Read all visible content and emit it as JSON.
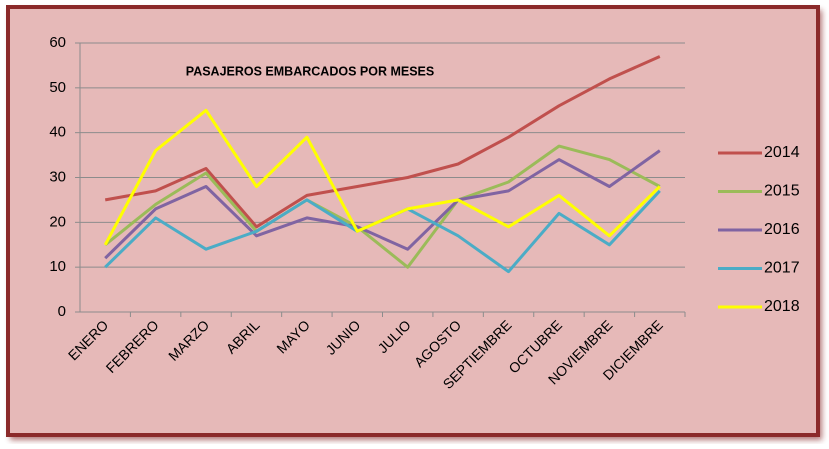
{
  "chart_data": {
    "type": "line",
    "title": "PASAJEROS EMBARCADOS POR MESES",
    "categories": [
      "ENERO",
      "FEBRERO",
      "MARZO",
      "ABRIL",
      "MAYO",
      "JUNIO",
      "JULIO",
      "AGOSTO",
      "SEPTIEMBRE",
      "OCTUBRE",
      "NOVIEMBRE",
      "DICIEMBRE"
    ],
    "series": [
      {
        "name": "2014",
        "color": "#c0504d",
        "values": [
          25,
          27,
          32,
          19,
          26,
          28,
          30,
          33,
          39,
          46,
          52,
          57
        ]
      },
      {
        "name": "2015",
        "color": "#9bbb59",
        "values": [
          15,
          24,
          31,
          18,
          25,
          19,
          10,
          25,
          29,
          37,
          34,
          28
        ]
      },
      {
        "name": "2016",
        "color": "#8064a2",
        "values": [
          12,
          23,
          28,
          17,
          21,
          19,
          14,
          25,
          27,
          34,
          28,
          36
        ]
      },
      {
        "name": "2017",
        "color": "#4bacc6",
        "values": [
          10,
          21,
          14,
          18,
          25,
          18,
          23,
          17,
          9,
          22,
          15,
          27
        ]
      },
      {
        "name": "2018",
        "color": "#ffff00",
        "values": [
          15,
          36,
          45,
          28,
          39,
          18,
          23,
          25,
          19,
          26,
          17,
          28
        ]
      }
    ],
    "ylim": [
      0,
      60
    ],
    "yticks": [
      0,
      10,
      20,
      30,
      40,
      50,
      60
    ],
    "grid": true,
    "legend": "right"
  }
}
